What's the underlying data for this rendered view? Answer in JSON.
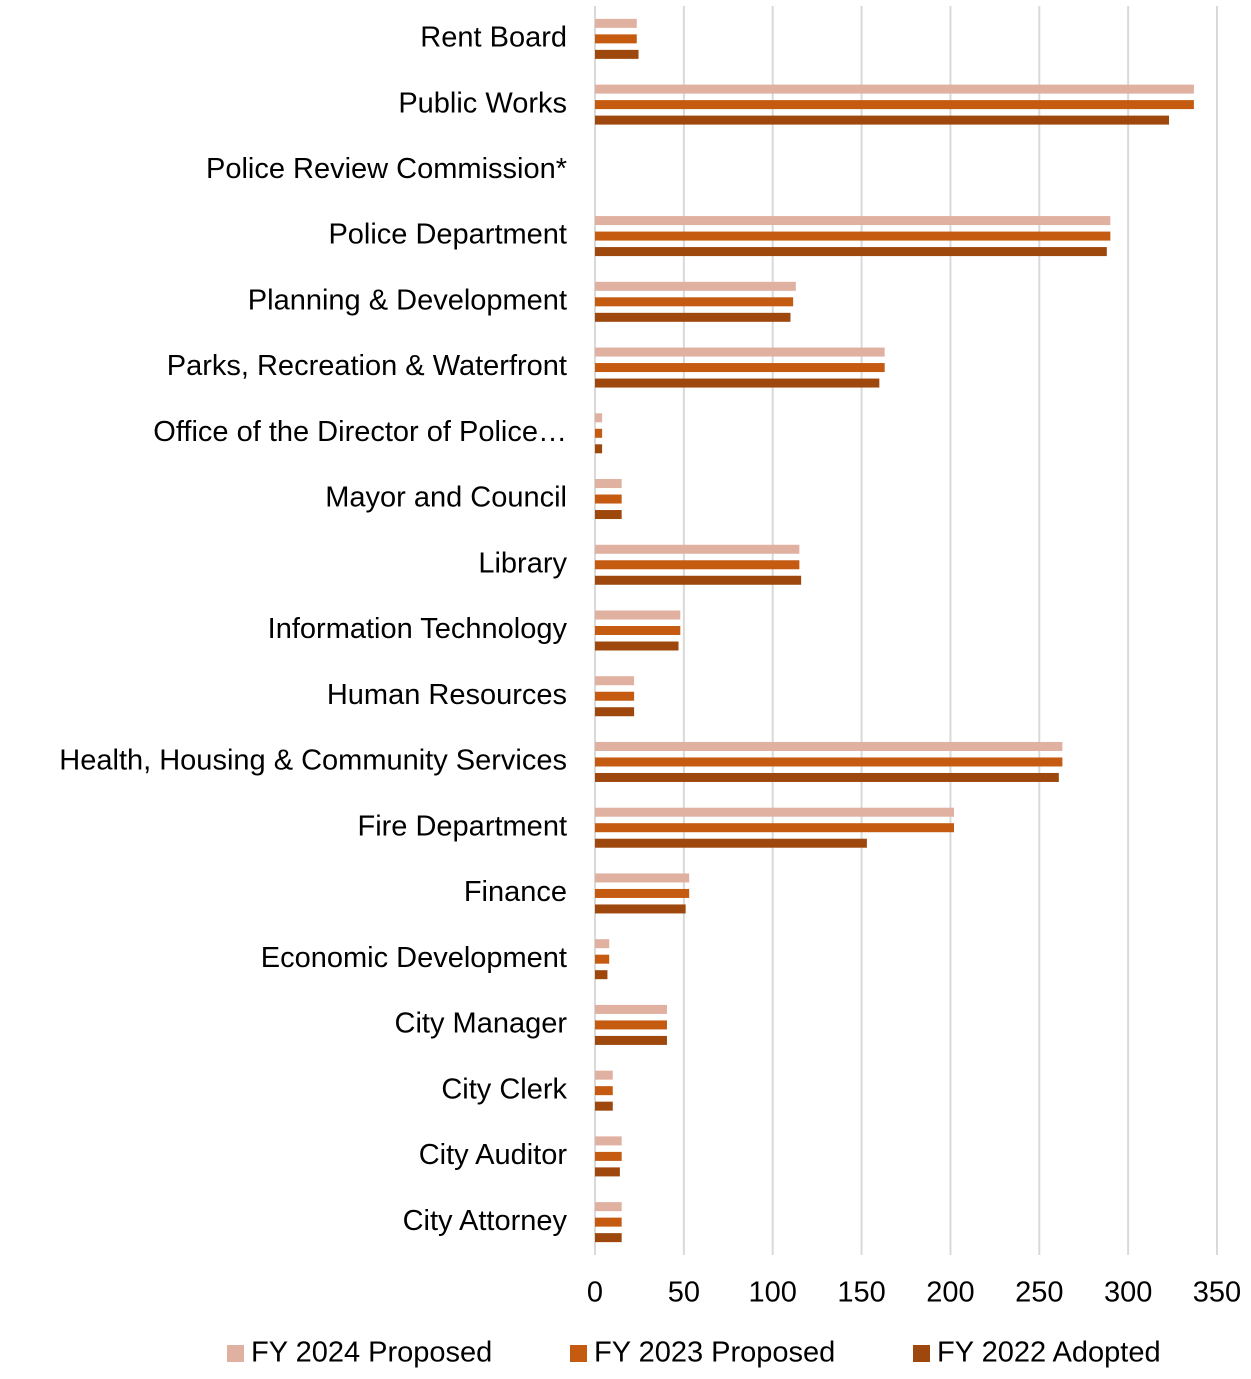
{
  "chart_data": {
    "type": "hbar",
    "categories": [
      "Rent Board",
      "Public Works",
      "Police Review Commission*",
      "Police Department",
      "Planning & Development",
      "Parks, Recreation & Waterfront",
      "Office of the Director of Police…",
      "Mayor and Council",
      "Library",
      "Information Technology",
      "Human Resources",
      "Health, Housing & Community Services",
      "Fire Department",
      "Finance",
      "Economic Development",
      "City Manager",
      "City Clerk",
      "City Auditor",
      "City Attorney"
    ],
    "series": [
      {
        "name": "FY 2024 Proposed",
        "color": "#e0b0a0",
        "values": [
          23.5,
          337,
          0,
          290,
          113,
          163,
          4,
          15,
          115,
          48,
          22,
          263,
          202,
          53,
          8,
          40.5,
          10,
          15,
          15
        ]
      },
      {
        "name": "FY 2023 Proposed",
        "color": "#c55a11",
        "values": [
          23.5,
          337,
          0,
          290,
          111.5,
          163,
          4,
          15,
          115,
          48,
          22,
          263,
          202,
          53,
          8,
          40.5,
          10,
          15,
          15
        ]
      },
      {
        "name": "FY 2022 Adopted",
        "color": "#9e480e",
        "values": [
          24.5,
          323,
          0,
          288,
          110,
          160,
          4,
          15,
          116,
          47,
          22,
          261,
          153,
          51,
          7,
          40.5,
          10,
          14,
          15
        ]
      }
    ],
    "xlim": [
      0,
      350
    ],
    "xticks": [
      0,
      50,
      100,
      150,
      200,
      250,
      300,
      350
    ],
    "grid": true,
    "legend": "bottom"
  }
}
